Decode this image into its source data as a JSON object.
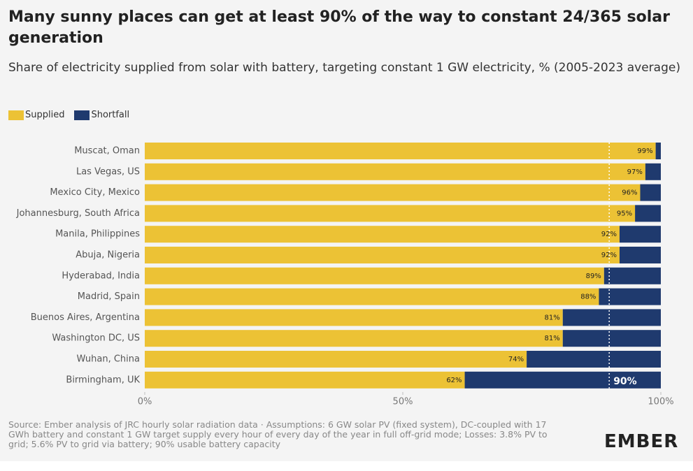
{
  "chart_data": {
    "type": "bar",
    "orientation": "horizontal",
    "stacked": true,
    "title": "Many sunny places can get at least 90% of the way to constant 24/365 solar generation",
    "subtitle": "Share of electricity supplied from solar with battery, targeting constant 1 GW electricity, % (2005-2023 average)",
    "categories": [
      "Muscat, Oman",
      "Las Vegas, US",
      "Mexico City, Mexico",
      "Johannesburg, South Africa",
      "Manila, Philippines",
      "Abuja, Nigeria",
      "Hyderabad, India",
      "Madrid, Spain",
      "Buenos Aires, Argentina",
      "Washington DC, US",
      "Wuhan, China",
      "Birmingham, UK"
    ],
    "series": [
      {
        "name": "Supplied",
        "color": "#ecc235",
        "values": [
          99,
          97,
          96,
          95,
          92,
          92,
          89,
          88,
          81,
          81,
          74,
          62
        ],
        "value_labels": [
          "99%",
          "97%",
          "96%",
          "95%",
          "92%",
          "92%",
          "89%",
          "88%",
          "81%",
          "81%",
          "74%",
          "62%"
        ]
      },
      {
        "name": "Shortfall",
        "color": "#1f3a6e",
        "values": [
          1,
          3,
          4,
          5,
          8,
          8,
          11,
          12,
          19,
          19,
          26,
          38
        ]
      }
    ],
    "xlim": [
      0,
      100
    ],
    "xticks": [
      {
        "value": 0,
        "label": "0%"
      },
      {
        "value": 50,
        "label": "50%"
      },
      {
        "value": 100,
        "label": "100%"
      }
    ],
    "reference_line": {
      "value": 90,
      "label": "90%"
    },
    "source": "Source: Ember analysis of JRC hourly solar radiation data · Assumptions: 6 GW solar PV (fixed system), DC-coupled with 17 GWh battery and constant 1 GW target supply every hour of every day of the year in full off-grid mode; Losses: 3.8% PV to grid; 5.6% PV to grid via battery; 90% usable battery capacity",
    "logo": "EMBER"
  }
}
